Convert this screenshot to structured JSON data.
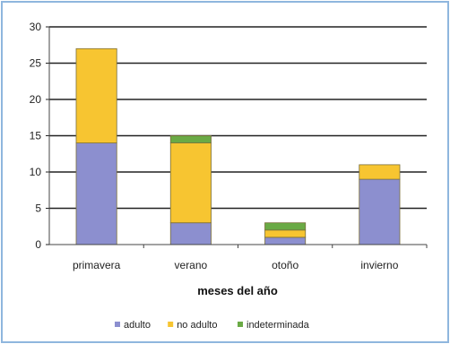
{
  "chart_data": {
    "type": "bar",
    "stacked": true,
    "categories": [
      "primavera",
      "verano",
      "otoño",
      "invierno"
    ],
    "series": [
      {
        "name": "adulto",
        "values": [
          14,
          3,
          1,
          9
        ],
        "color": "#8c8fcf"
      },
      {
        "name": "no adulto",
        "values": [
          13,
          11,
          1,
          2
        ],
        "color": "#f7c531"
      },
      {
        "name": "indeterminada",
        "values": [
          0,
          1,
          1,
          0
        ],
        "color": "#6aaa45"
      }
    ],
    "xlabel": "meses del año",
    "ylabel": "",
    "ylim": [
      0,
      30
    ],
    "yticks": [
      0,
      5,
      10,
      15,
      20,
      25,
      30
    ],
    "grid": true,
    "legend_position": "bottom"
  }
}
